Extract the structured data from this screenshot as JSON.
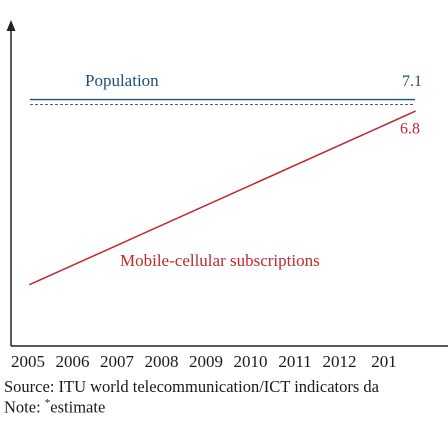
{
  "chart_data": {
    "type": "line",
    "x": [
      "2005",
      "2006",
      "2007",
      "2008",
      "2009",
      "2010",
      "2011",
      "2012",
      "201"
    ],
    "series": [
      {
        "name": "Population",
        "values": [
          null,
          null,
          null,
          null,
          null,
          null,
          null,
          null,
          7.1
        ],
        "end_label": "7.1",
        "color": "#1f4e79",
        "style": "solid-over-dashed"
      },
      {
        "name": "Mobile-cellular subscriptions",
        "values": [
          2.2,
          null,
          null,
          null,
          null,
          null,
          null,
          null,
          6.8
        ],
        "end_label": "6.8",
        "color": "#c0282d",
        "style": "solid"
      }
    ],
    "xlabel": "",
    "ylabel": "",
    "grid": false,
    "axes_color": "#222222"
  },
  "footnotes": {
    "source": "Source: ITU world telecommunication/ICT indicators da",
    "note_prefix": "Note: ",
    "note_mark": "*",
    "note_text": "estimate"
  }
}
